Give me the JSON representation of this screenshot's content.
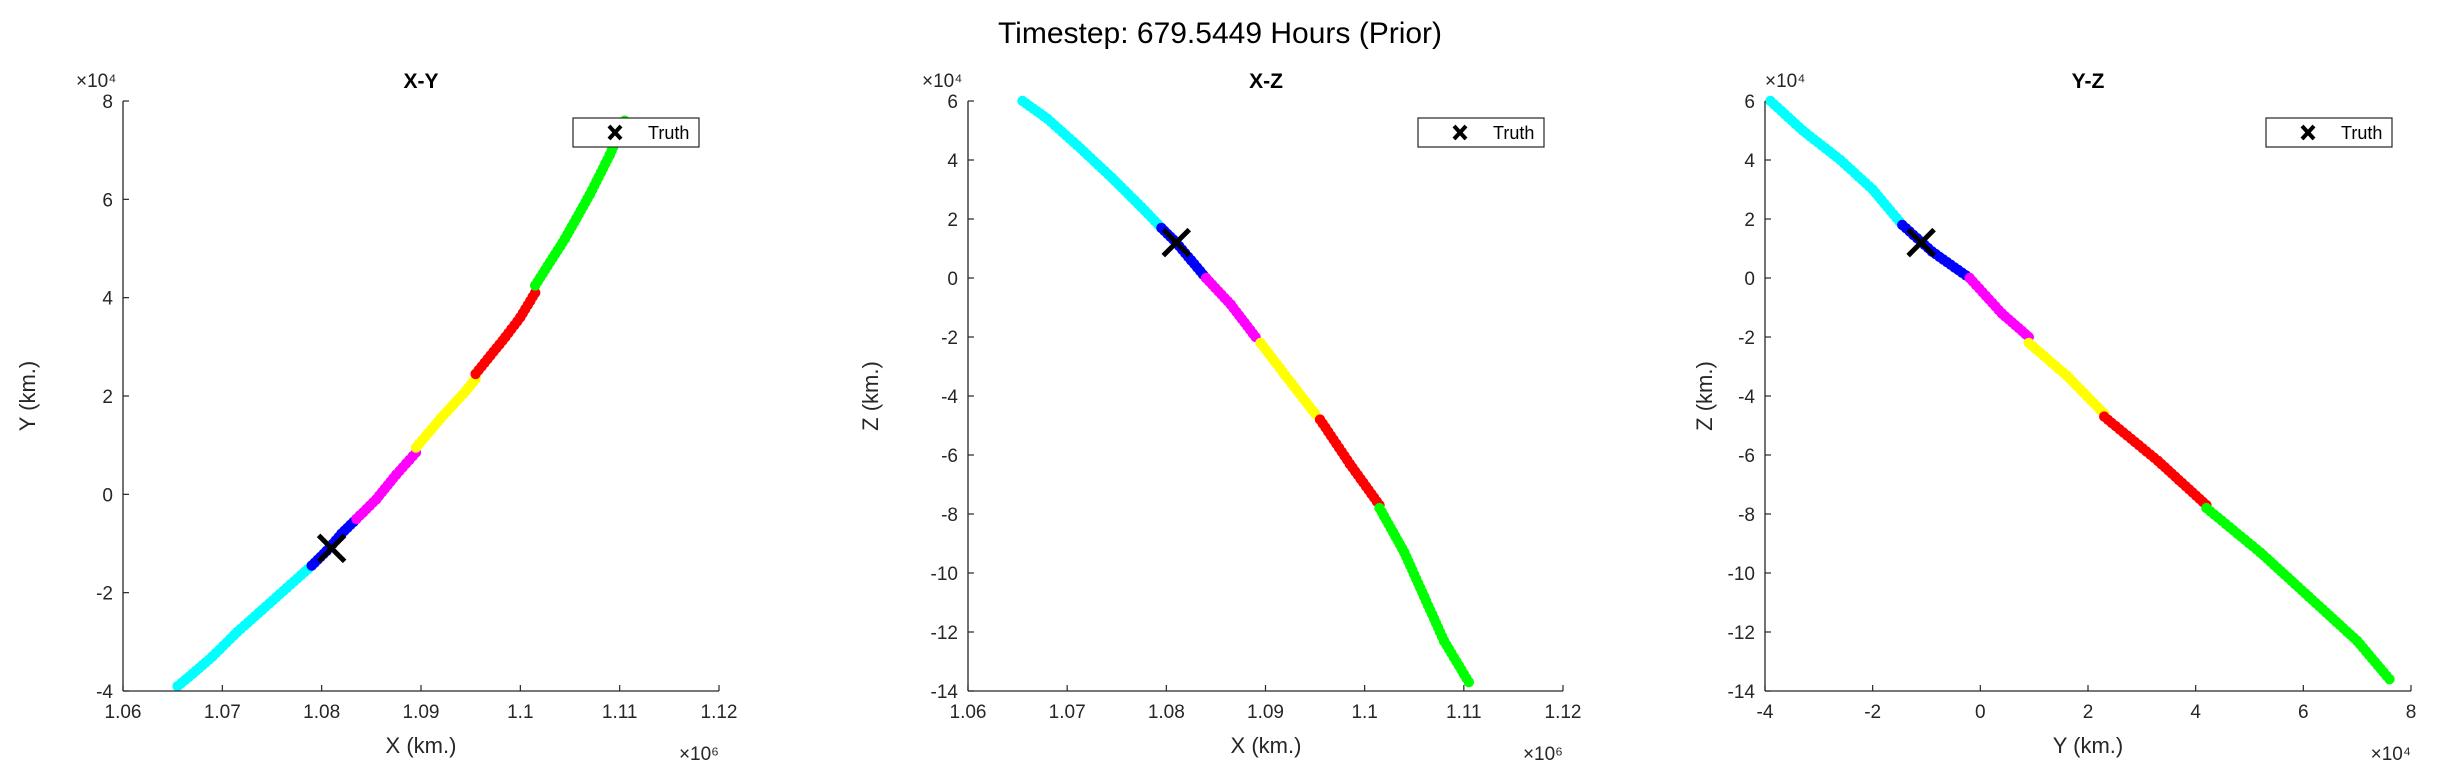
{
  "figure": {
    "title": "Timestep: 679.5449 Hours (Prior)"
  },
  "colors": {
    "cyan": "#00ffff",
    "blue": "#0000ff",
    "magenta": "#ff00ff",
    "yellow": "#ffff00",
    "red": "#ff0000",
    "green": "#00ff00",
    "truth": "#000000",
    "axis": "#262626"
  },
  "chart_data": [
    {
      "type": "scatter",
      "title": "X-Y",
      "xlabel": "X (km.)",
      "ylabel": "Y (km.)",
      "x_exponent_label": "×10⁶",
      "y_exponent_label": "×10⁴",
      "xlim": [
        1.06,
        1.12
      ],
      "ylim": [
        -4,
        8
      ],
      "xticks": [
        1.06,
        1.07,
        1.08,
        1.09,
        1.1,
        1.11,
        1.12
      ],
      "xtick_labels": [
        "1.06",
        "1.07",
        "1.08",
        "1.09",
        "1.1",
        "1.11",
        "1.12"
      ],
      "yticks": [
        -4,
        -2,
        0,
        2,
        4,
        6,
        8
      ],
      "ytick_labels": [
        "-4",
        "-2",
        "0",
        "2",
        "4",
        "6",
        "8"
      ],
      "grid": false,
      "legend": {
        "entries": [
          "Truth"
        ],
        "location": "top-right"
      },
      "truth": {
        "x": 1.081,
        "y": -1.1
      },
      "series": [
        {
          "color": "cyan",
          "points": [
            [
              1.0655,
              -3.9
            ],
            [
              1.067,
              -3.65
            ],
            [
              1.069,
              -3.3
            ],
            [
              1.0715,
              -2.8
            ],
            [
              1.074,
              -2.35
            ],
            [
              1.0765,
              -1.9
            ],
            [
              1.079,
              -1.45
            ]
          ]
        },
        {
          "color": "blue",
          "points": [
            [
              1.079,
              -1.45
            ],
            [
              1.0805,
              -1.15
            ],
            [
              1.082,
              -0.8
            ],
            [
              1.0835,
              -0.5
            ]
          ]
        },
        {
          "color": "magenta",
          "points": [
            [
              1.0835,
              -0.5
            ],
            [
              1.0855,
              -0.1
            ],
            [
              1.0875,
              0.4
            ],
            [
              1.0895,
              0.85
            ]
          ]
        },
        {
          "color": "yellow",
          "points": [
            [
              1.0895,
              0.95
            ],
            [
              1.092,
              1.55
            ],
            [
              1.0945,
              2.1
            ],
            [
              1.0955,
              2.35
            ]
          ]
        },
        {
          "color": "red",
          "points": [
            [
              1.0955,
              2.45
            ],
            [
              1.0985,
              3.2
            ],
            [
              1.1,
              3.6
            ],
            [
              1.1015,
              4.1
            ]
          ]
        },
        {
          "color": "green",
          "points": [
            [
              1.1015,
              4.25
            ],
            [
              1.1045,
              5.2
            ],
            [
              1.107,
              6.1
            ],
            [
              1.109,
              6.9
            ],
            [
              1.1105,
              7.6
            ]
          ]
        }
      ]
    },
    {
      "type": "scatter",
      "title": "X-Z",
      "xlabel": "X (km.)",
      "ylabel": "Z (km.)",
      "x_exponent_label": "×10⁶",
      "y_exponent_label": "×10⁴",
      "xlim": [
        1.06,
        1.12
      ],
      "ylim": [
        -14,
        6
      ],
      "xticks": [
        1.06,
        1.07,
        1.08,
        1.09,
        1.1,
        1.11,
        1.12
      ],
      "xtick_labels": [
        "1.06",
        "1.07",
        "1.08",
        "1.09",
        "1.1",
        "1.11",
        "1.12"
      ],
      "yticks": [
        -14,
        -12,
        -10,
        -8,
        -6,
        -4,
        -2,
        0,
        2,
        4,
        6
      ],
      "ytick_labels": [
        "-14",
        "-12",
        "-10",
        "-8",
        "-6",
        "-4",
        "-2",
        "0",
        "2",
        "4",
        "6"
      ],
      "grid": false,
      "legend": {
        "entries": [
          "Truth"
        ],
        "location": "top-right"
      },
      "truth": {
        "x": 1.081,
        "y": 1.2
      },
      "series": [
        {
          "color": "cyan",
          "points": [
            [
              1.0655,
              6.0
            ],
            [
              1.068,
              5.4
            ],
            [
              1.071,
              4.5
            ],
            [
              1.0745,
              3.4
            ],
            [
              1.0775,
              2.4
            ],
            [
              1.0795,
              1.7
            ]
          ]
        },
        {
          "color": "blue",
          "points": [
            [
              1.0795,
              1.7
            ],
            [
              1.081,
              1.2
            ],
            [
              1.0825,
              0.6
            ],
            [
              1.084,
              0.0
            ]
          ]
        },
        {
          "color": "magenta",
          "points": [
            [
              1.084,
              0.0
            ],
            [
              1.0865,
              -0.9
            ],
            [
              1.089,
              -2.0
            ]
          ]
        },
        {
          "color": "yellow",
          "points": [
            [
              1.0895,
              -2.2
            ],
            [
              1.092,
              -3.3
            ],
            [
              1.095,
              -4.6
            ]
          ]
        },
        {
          "color": "red",
          "points": [
            [
              1.0955,
              -4.8
            ],
            [
              1.0985,
              -6.3
            ],
            [
              1.1015,
              -7.7
            ]
          ]
        },
        {
          "color": "green",
          "points": [
            [
              1.1015,
              -7.8
            ],
            [
              1.104,
              -9.3
            ],
            [
              1.106,
              -10.8
            ],
            [
              1.108,
              -12.3
            ],
            [
              1.1105,
              -13.7
            ]
          ]
        }
      ]
    },
    {
      "type": "scatter",
      "title": "Y-Z",
      "xlabel": "Y (km.)",
      "ylabel": "Z (km.)",
      "x_exponent_label": "×10⁴",
      "y_exponent_label": "×10⁴",
      "xlim": [
        -4,
        8
      ],
      "ylim": [
        -14,
        6
      ],
      "xticks": [
        -4,
        -2,
        0,
        2,
        4,
        6,
        8
      ],
      "xtick_labels": [
        "-4",
        "-2",
        "0",
        "2",
        "4",
        "6",
        "8"
      ],
      "yticks": [
        -14,
        -12,
        -10,
        -8,
        -6,
        -4,
        -2,
        0,
        2,
        4,
        6
      ],
      "ytick_labels": [
        "-14",
        "-12",
        "-10",
        "-8",
        "-6",
        "-4",
        "-2",
        "0",
        "2",
        "4",
        "6"
      ],
      "grid": false,
      "legend": {
        "entries": [
          "Truth"
        ],
        "location": "top-right"
      },
      "truth": {
        "x": -1.1,
        "y": 1.2
      },
      "series": [
        {
          "color": "cyan",
          "points": [
            [
              -3.9,
              6.0
            ],
            [
              -3.3,
              5.0
            ],
            [
              -2.6,
              4.0
            ],
            [
              -2.0,
              3.0
            ],
            [
              -1.45,
              1.8
            ]
          ]
        },
        {
          "color": "blue",
          "points": [
            [
              -1.45,
              1.8
            ],
            [
              -0.9,
              0.9
            ],
            [
              -0.2,
              0.0
            ]
          ]
        },
        {
          "color": "magenta",
          "points": [
            [
              -0.2,
              0.0
            ],
            [
              0.4,
              -1.2
            ],
            [
              0.9,
              -2.0
            ]
          ]
        },
        {
          "color": "yellow",
          "points": [
            [
              0.9,
              -2.2
            ],
            [
              1.6,
              -3.3
            ],
            [
              2.3,
              -4.6
            ]
          ]
        },
        {
          "color": "red",
          "points": [
            [
              2.3,
              -4.7
            ],
            [
              3.3,
              -6.2
            ],
            [
              4.2,
              -7.7
            ]
          ]
        },
        {
          "color": "green",
          "points": [
            [
              4.2,
              -7.8
            ],
            [
              5.2,
              -9.3
            ],
            [
              6.1,
              -10.8
            ],
            [
              7.0,
              -12.3
            ],
            [
              7.6,
              -13.6
            ]
          ]
        }
      ]
    }
  ]
}
